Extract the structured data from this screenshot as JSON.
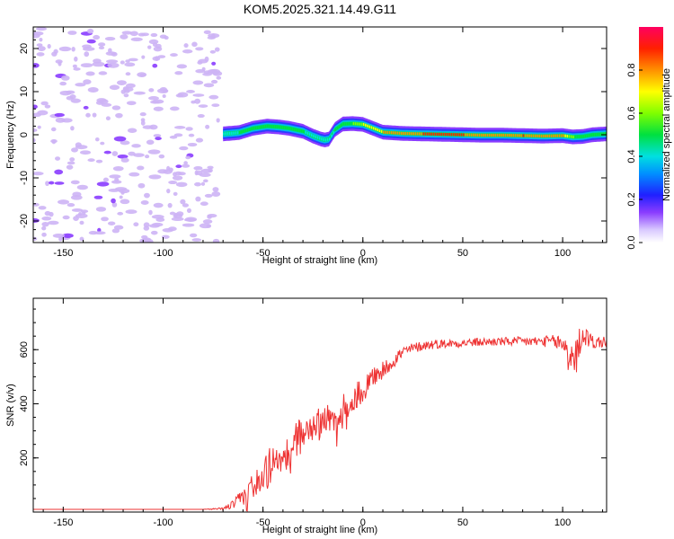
{
  "chart_data": [
    {
      "type": "heatmap",
      "title": "KOM5.2025.321.14.49.G11",
      "xlabel": "Height of straight line (km)",
      "ylabel": "Frequency (Hz)",
      "xlim": [
        -165,
        122
      ],
      "ylim": [
        -25,
        25
      ],
      "xticks": [
        -150,
        -100,
        -50,
        0,
        50,
        100
      ],
      "yticks": [
        -20,
        -10,
        0,
        10,
        20
      ],
      "colorbar": {
        "label": "Normalized spectral amplitude",
        "range": [
          0,
          1
        ],
        "ticks": [
          0.0,
          0.2,
          0.4,
          0.6,
          0.8
        ]
      },
      "noise_region": [
        -165,
        -72
      ],
      "ridge": {
        "x": [
          -70,
          -62,
          -55,
          -48,
          -42,
          -37,
          -30,
          -25,
          -21,
          -19,
          -17,
          -14,
          -10,
          -5,
          0,
          5,
          10,
          20,
          30,
          40,
          50,
          60,
          70,
          80,
          90,
          100,
          105,
          110,
          115,
          122
        ],
        "freq": [
          0.2,
          0.5,
          1.5,
          2.0,
          1.8,
          1.5,
          0.8,
          -0.3,
          -1.0,
          -1.2,
          -1.0,
          1.2,
          2.5,
          2.6,
          2.4,
          1.5,
          0.6,
          0.3,
          0.2,
          0.1,
          0.0,
          -0.1,
          -0.1,
          -0.2,
          -0.3,
          -0.2,
          -0.5,
          -0.4,
          0.0,
          0.2
        ],
        "amp": [
          0.4,
          0.5,
          0.5,
          0.55,
          0.5,
          0.5,
          0.5,
          0.45,
          0.4,
          0.4,
          0.45,
          0.5,
          0.55,
          0.6,
          0.7,
          0.75,
          0.8,
          0.85,
          0.9,
          0.92,
          0.9,
          0.88,
          0.85,
          0.9,
          0.85,
          0.8,
          0.6,
          0.5,
          0.55,
          0.5
        ]
      }
    },
    {
      "type": "line",
      "title": "",
      "xlabel": "Height of straight line (km)",
      "ylabel": "SNR (v/v)",
      "xlim": [
        -165,
        122
      ],
      "ylim": [
        0,
        790
      ],
      "xticks": [
        -150,
        -100,
        -50,
        0,
        50,
        100
      ],
      "yticks": [
        200,
        400,
        600
      ],
      "line_color": "#ee3333",
      "series": [
        {
          "name": "SNR",
          "x": [
            -165,
            -140,
            -110,
            -80,
            -70,
            -64,
            -60,
            -55,
            -50,
            -45,
            -40,
            -35,
            -30,
            -25,
            -20,
            -15,
            -10,
            -5,
            0,
            5,
            10,
            15,
            20,
            25,
            30,
            35,
            40,
            50,
            60,
            70,
            80,
            90,
            95,
            100,
            103,
            106,
            108,
            110,
            113,
            116,
            122
          ],
          "y": [
            10,
            10,
            10,
            10,
            12,
            30,
            60,
            100,
            150,
            180,
            200,
            250,
            300,
            320,
            350,
            330,
            380,
            420,
            450,
            500,
            520,
            560,
            590,
            605,
            615,
            620,
            622,
            625,
            628,
            630,
            630,
            630,
            632,
            620,
            600,
            560,
            620,
            660,
            640,
            625,
            630
          ],
          "jitter": [
            0,
            0,
            0,
            0,
            5,
            20,
            35,
            50,
            65,
            70,
            65,
            65,
            60,
            55,
            55,
            55,
            55,
            50,
            45,
            40,
            35,
            30,
            25,
            20,
            18,
            18,
            16,
            16,
            16,
            16,
            18,
            20,
            22,
            40,
            60,
            80,
            60,
            45,
            30,
            25,
            22
          ]
        }
      ]
    }
  ]
}
